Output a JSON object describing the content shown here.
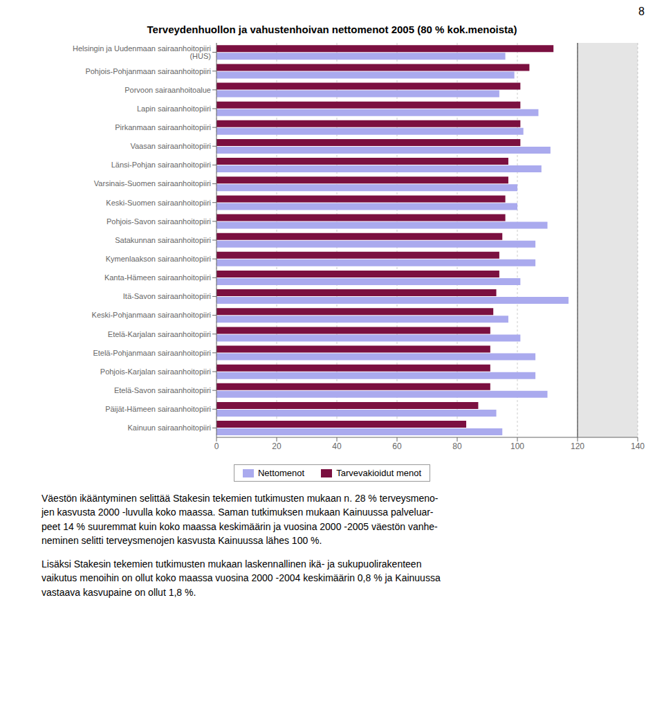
{
  "chart_data": {
    "type": "bar",
    "orientation": "horizontal",
    "title": "Terveydenhuollon ja vahustenhoivan nettomenot 2005 (80 % kok.menoista)",
    "categories": [
      "Helsingin ja Uudenmaan sairaanhoitopiiri (HUS)",
      "Pohjois-Pohjanmaan sairaanhoitopiiri",
      "Porvoon sairaanhoitoalue",
      "Lapin sairaanhoitopiiri",
      "Pirkanmaan sairaanhoitopiiri",
      "Vaasan sairaanhoitopiiri",
      "Länsi-Pohjan sairaanhoitopiiri",
      "Varsinais-Suomen sairaanhoitopiiri",
      "Keski-Suomen sairaanhoitopiiri",
      "Pohjois-Savon sairaanhoitopiiri",
      "Satakunnan sairaanhoitopiiri",
      "Kymenlaakson sairaanhoitopiiri",
      "Kanta-Hämeen sairaanhoitopiiri",
      "Itä-Savon sairaanhoitopiiri",
      "Keski-Pohjanmaan sairaanhoitopiiri",
      "Etelä-Karjalan sairaanhoitopiiri",
      "Etelä-Pohjanmaan sairaanhoitopiiri",
      "Pohjois-Karjalan sairaanhoitopiiri",
      "Etelä-Savon sairaanhoitopiiri",
      "Päijät-Hämeen sairaanhoitopiiri",
      "Kainuun sairaanhoitopiiri"
    ],
    "series": [
      {
        "name": "Nettomenot",
        "color": "#aaaaee",
        "values": [
          96,
          99,
          94,
          107,
          102,
          111,
          108,
          100,
          100,
          110,
          106,
          106,
          101,
          117,
          97,
          101,
          106,
          106,
          110,
          93,
          95
        ]
      },
      {
        "name": "Tarvevakioidut menot",
        "color": "#7b1040",
        "values": [
          112,
          104,
          101,
          101,
          101,
          101,
          97,
          97,
          96,
          96,
          95,
          94,
          94,
          93,
          92,
          91,
          91,
          91,
          91,
          87,
          83
        ]
      }
    ],
    "xlim": [
      0,
      140
    ],
    "xticks": [
      0,
      20,
      40,
      60,
      80,
      100,
      120,
      140
    ],
    "reference_line": 120,
    "grid": true,
    "legend": "bottom",
    "annotations": [
      "8",
      "Väestön ikääntyminen selittää Stakesin tekemien tutkimusten mukaan n. 28 % terveysmeno-\njen kasvusta 2000 -luvulla koko maassa. Saman tutkimuksen mukaan Kainuussa palveluar-\npeet 14 % suuremmat kuin koko maassa keskimäärin ja vuosina 2000 -2005 väestön vanhe-\nneminen selitti terveysmenojen kasvusta Kainuussa lähes 100 %.",
      "Lisäksi Stakesin tekemien tutkimusten mukaan laskennallinen ikä- ja sukupuolirakenteen\nvaikutus menoihin on ollut koko maassa vuosina 2000 -2004 keskimäärin 0,8 % ja Kainuussa\nvastaava kasvupaine on ollut 1,8 %."
    ]
  }
}
